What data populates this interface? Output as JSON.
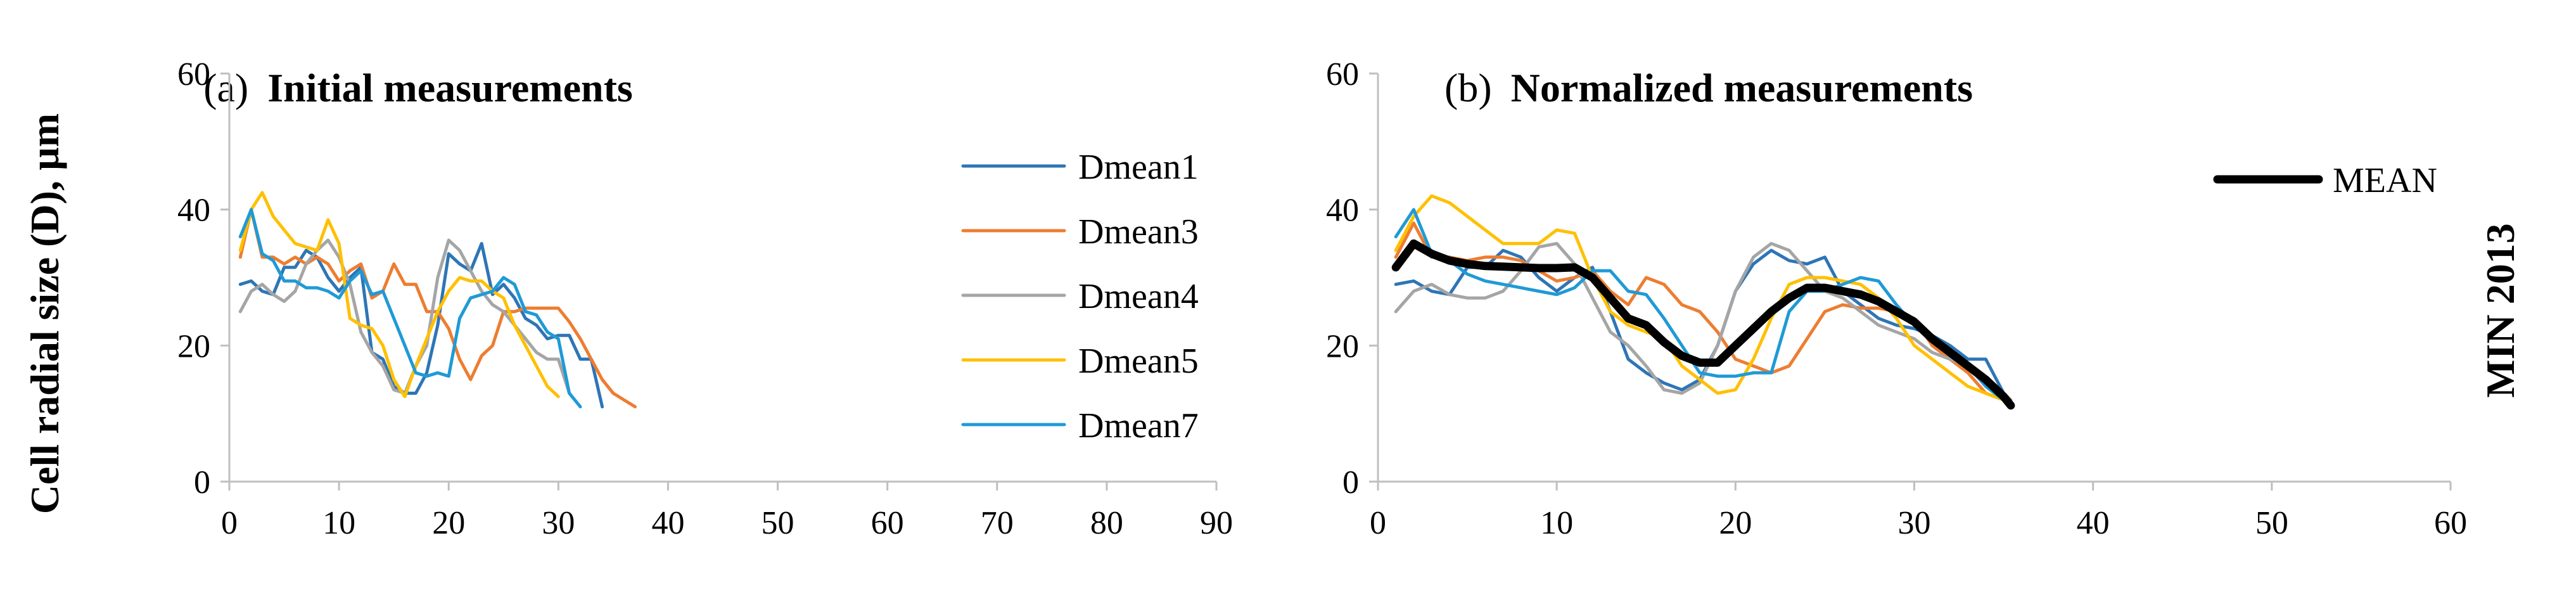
{
  "figure": {
    "y_label": "Cell radial size    (D), µm",
    "side_label": "MIN 2013"
  },
  "colors": {
    "Dmean1": "#2e75b6",
    "Dmean3": "#ed7d31",
    "Dmean4": "#a5a5a5",
    "Dmean5": "#ffc000",
    "Dmean7": "#1f9ad6",
    "MEAN": "#000000"
  },
  "chart_data": [
    {
      "type": "line",
      "title_prefix": "(a)",
      "title": "Initial measurements",
      "ylim": [
        0,
        60
      ],
      "yticks": [
        0,
        20,
        40,
        60
      ],
      "xlim": [
        0,
        90
      ],
      "xticks": [
        0,
        10,
        20,
        30,
        40,
        50,
        60,
        70,
        80,
        90
      ],
      "legend_position": "right",
      "series": [
        {
          "name": "Dmean1",
          "x": [
            1,
            2,
            3,
            4,
            5,
            6,
            7,
            8,
            9,
            10,
            11,
            12,
            13,
            14,
            15,
            16,
            17,
            18,
            19,
            20,
            21,
            22,
            23,
            24,
            25,
            26,
            27,
            28,
            29,
            30,
            31,
            32,
            33,
            34
          ],
          "values": [
            29,
            29.5,
            28,
            27.5,
            31.5,
            31.5,
            34,
            33,
            30,
            28,
            30,
            31.5,
            19,
            18,
            14,
            13,
            13,
            16,
            23,
            33.5,
            32,
            31,
            35,
            27.5,
            29,
            27,
            24,
            23,
            21,
            21.5,
            21.5,
            18,
            18,
            11
          ]
        },
        {
          "name": "Dmean3",
          "x": [
            1,
            2,
            3,
            4,
            5,
            6,
            7,
            8,
            9,
            10,
            11,
            12,
            13,
            14,
            15,
            16,
            17,
            18,
            19,
            20,
            21,
            22,
            23,
            24,
            25,
            26,
            27,
            28,
            29,
            30,
            31,
            32,
            33,
            34,
            35,
            36,
            37
          ],
          "values": [
            33,
            40,
            33,
            33,
            32,
            33,
            32,
            33,
            32,
            29.5,
            31,
            32,
            27,
            28,
            32,
            29,
            29,
            25,
            25,
            22.5,
            18,
            15,
            18.5,
            20,
            25,
            25,
            25.5,
            25.5,
            25.5,
            25.5,
            23.5,
            21,
            18,
            15,
            13,
            12,
            11
          ]
        },
        {
          "name": "Dmean4",
          "x": [
            1,
            2,
            3,
            4,
            5,
            6,
            7,
            8,
            9,
            10,
            11,
            12,
            13,
            14,
            15,
            16,
            17,
            18,
            19,
            20,
            21,
            22,
            23,
            24,
            25,
            26,
            27,
            28,
            29,
            30,
            31
          ],
          "values": [
            25,
            28,
            29,
            27.5,
            26.5,
            28,
            32,
            34,
            35.5,
            33,
            29,
            22,
            19,
            17,
            13.5,
            13,
            17,
            20,
            30,
            35.5,
            34,
            31,
            28,
            26,
            25,
            23,
            21,
            19,
            18,
            18,
            13
          ]
        },
        {
          "name": "Dmean5",
          "x": [
            1,
            2,
            3,
            4,
            5,
            6,
            7,
            8,
            9,
            10,
            11,
            12,
            13,
            14,
            15,
            16,
            17,
            18,
            19,
            20,
            21,
            22,
            23,
            24,
            25,
            26,
            27,
            28,
            29,
            30
          ],
          "values": [
            34,
            40,
            42.5,
            39,
            37,
            35,
            34.5,
            34,
            38.5,
            35,
            24,
            23,
            22.5,
            20,
            15,
            12.5,
            17,
            21,
            25,
            28,
            30,
            29.5,
            29.5,
            28,
            27,
            23,
            20,
            17,
            14,
            12.5
          ]
        },
        {
          "name": "Dmean7",
          "x": [
            1,
            2,
            3,
            4,
            5,
            6,
            7,
            8,
            9,
            10,
            11,
            12,
            13,
            14,
            15,
            16,
            17,
            18,
            19,
            20,
            21,
            22,
            23,
            24,
            25,
            26,
            27,
            28,
            29,
            30,
            31,
            32
          ],
          "values": [
            36,
            40,
            33.5,
            32.5,
            29.5,
            29.5,
            28.5,
            28.5,
            28,
            27,
            29.5,
            31,
            27.5,
            28,
            24,
            20,
            16,
            15.5,
            16,
            15.5,
            24,
            27,
            27.5,
            28,
            30,
            29,
            25,
            24.5,
            22,
            21,
            13,
            11
          ]
        }
      ]
    },
    {
      "type": "line",
      "title_prefix": "(b)",
      "title": "Normalized measurements",
      "ylim": [
        0,
        60
      ],
      "yticks": [
        0,
        20,
        40,
        60
      ],
      "xlim": [
        0,
        60
      ],
      "xticks": [
        0,
        10,
        20,
        30,
        40,
        50,
        60
      ],
      "legend_position": "top-right",
      "legend": [
        "MEAN"
      ],
      "series": [
        {
          "name": "Dmean1",
          "x": [
            1,
            2,
            3,
            4,
            5,
            6,
            7,
            8,
            9,
            10,
            11,
            12,
            13,
            14,
            15,
            16,
            17,
            18,
            19,
            20,
            21,
            22,
            23,
            24,
            25,
            26,
            27,
            28,
            29,
            30,
            31,
            32,
            33,
            34,
            35,
            35.4
          ],
          "values": [
            29,
            29.5,
            28,
            27.5,
            31.5,
            31.5,
            34,
            33,
            30,
            28,
            30,
            31.5,
            25,
            18,
            16,
            14.5,
            13.5,
            15,
            20,
            28,
            32,
            34,
            32.5,
            32,
            33,
            28,
            26,
            24,
            23,
            22.5,
            21.5,
            20,
            18,
            18,
            13,
            11
          ]
        },
        {
          "name": "Dmean3",
          "x": [
            1,
            2,
            3,
            4,
            5,
            6,
            7,
            8,
            9,
            10,
            11,
            12,
            13,
            14,
            15,
            16,
            17,
            18,
            19,
            20,
            21,
            22,
            23,
            24,
            25,
            26,
            27,
            28,
            29,
            30,
            31,
            32,
            33,
            34,
            35,
            35.4
          ],
          "values": [
            33,
            38,
            33,
            33,
            32.5,
            33,
            33,
            32.5,
            31,
            29.5,
            30,
            31,
            28,
            26,
            30,
            29,
            26,
            25,
            22,
            18,
            17,
            16,
            17,
            21,
            25,
            26,
            25.5,
            25.5,
            25,
            24,
            20,
            18,
            16,
            13,
            12,
            11
          ]
        },
        {
          "name": "Dmean4",
          "x": [
            1,
            2,
            3,
            4,
            5,
            6,
            7,
            8,
            9,
            10,
            11,
            12,
            13,
            14,
            15,
            16,
            17,
            18,
            19,
            20,
            21,
            22,
            23,
            24,
            25,
            26,
            27,
            28,
            29,
            30,
            31,
            32,
            33,
            34,
            35,
            35.4
          ],
          "values": [
            25,
            28,
            29,
            27.5,
            27,
            27,
            28,
            31,
            34.5,
            35,
            32,
            27,
            22,
            20,
            17,
            13.5,
            13,
            14.5,
            20,
            28,
            33,
            35,
            34,
            31,
            28,
            27,
            25,
            23,
            22,
            21,
            19,
            18,
            17,
            15,
            13,
            12
          ]
        },
        {
          "name": "Dmean5",
          "x": [
            1,
            2,
            3,
            4,
            5,
            6,
            7,
            8,
            9,
            10,
            11,
            12,
            13,
            14,
            15,
            16,
            17,
            18,
            19,
            20,
            21,
            22,
            23,
            24,
            25,
            26,
            27,
            28,
            29,
            30,
            31,
            32,
            33,
            34,
            35,
            35.4
          ],
          "values": [
            34,
            39,
            42,
            41,
            39,
            37,
            35,
            35,
            35,
            37,
            36.5,
            30,
            25,
            23,
            22,
            21,
            17,
            15,
            13,
            13.5,
            18,
            24,
            29,
            30,
            30,
            29.5,
            29,
            27,
            24,
            20,
            18,
            16,
            14,
            13,
            12,
            11
          ]
        },
        {
          "name": "Dmean7",
          "x": [
            1,
            2,
            3,
            4,
            5,
            6,
            7,
            8,
            9,
            10,
            11,
            12,
            13,
            14,
            15,
            16,
            17,
            18,
            19,
            20,
            21,
            22,
            23,
            24,
            25,
            26,
            27,
            28,
            29,
            30,
            31,
            32,
            33,
            34,
            35,
            35.4
          ],
          "values": [
            36,
            40,
            33.5,
            32.5,
            30.5,
            29.5,
            29,
            28.5,
            28,
            27.5,
            28.5,
            31,
            31,
            28,
            27.5,
            24,
            20,
            16,
            15.5,
            15.5,
            16,
            16,
            25,
            28,
            28,
            29,
            30,
            29.5,
            26,
            23,
            21,
            19,
            17,
            14,
            12,
            11
          ]
        },
        {
          "name": "MEAN",
          "x": [
            1,
            2,
            3,
            4,
            5,
            6,
            7,
            8,
            9,
            10,
            11,
            12,
            13,
            14,
            15,
            16,
            17,
            18,
            19,
            20,
            21,
            22,
            23,
            24,
            25,
            26,
            27,
            28,
            29,
            30,
            31,
            32,
            33,
            34,
            35,
            35.4
          ],
          "values": [
            31.5,
            35,
            33.5,
            32.5,
            32,
            31.7,
            31.6,
            31.5,
            31.4,
            31.4,
            31.5,
            30,
            27,
            24,
            23,
            20.5,
            18.5,
            17.5,
            17.5,
            20,
            22.5,
            25,
            27,
            28.5,
            28.5,
            28,
            27.5,
            26.5,
            25,
            23.5,
            21,
            19,
            17,
            15,
            12.5,
            11.2
          ]
        }
      ]
    }
  ]
}
